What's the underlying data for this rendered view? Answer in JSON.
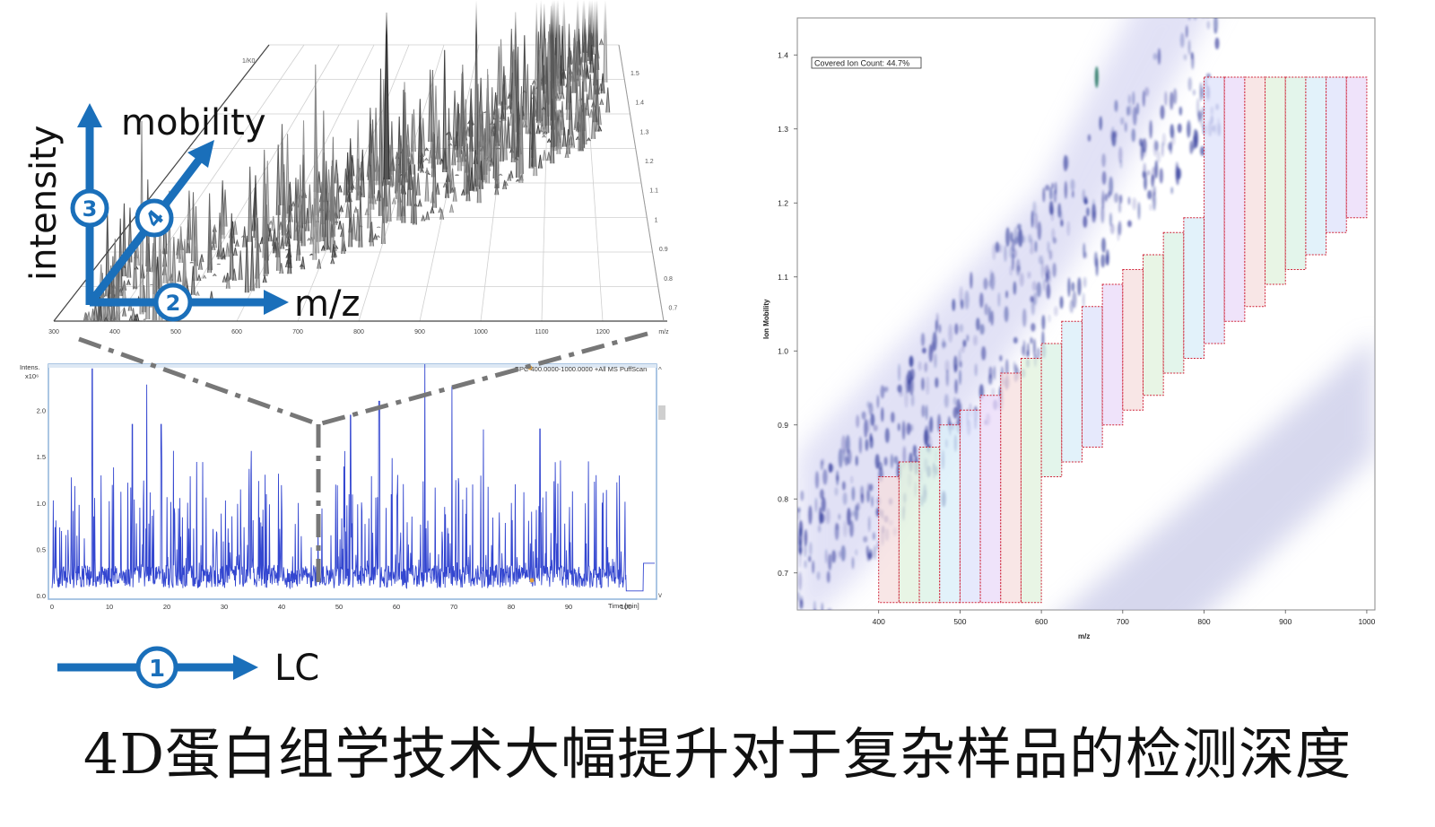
{
  "caption": "4D蛋白组学技术大幅提升对于复杂样品的检测深度",
  "axis_labels": {
    "intensity": "intensity",
    "mobility": "mobility",
    "mz": "m/z",
    "lc": "LC"
  },
  "badges": [
    "1",
    "2",
    "3",
    "4"
  ],
  "colors": {
    "accent_blue": "#1a6fba",
    "trace_blue": "#3346d0",
    "bin_border": "#d0253a"
  },
  "chart_data": [
    {
      "type": "line",
      "description_label": "3D surface",
      "x_ticks": [
        "300",
        "400",
        "500",
        "600",
        "700",
        "800",
        "900",
        "1000",
        "1100",
        "1200",
        "m/z"
      ],
      "z_ticks": [
        "1.5",
        "1.4",
        "1.3",
        "1.2",
        "1.1",
        "1",
        "0.9",
        "0.8",
        "0.7"
      ],
      "corner_label": "1/K0"
    },
    {
      "type": "line",
      "ylabel": "Intens.\nx10⁶",
      "ylabel_line1": "Intens.",
      "ylabel_line2": "x10⁶",
      "legend": "BPC 400.0000-1000.0000 +All MS PuffScan",
      "y_ticks": [
        "0.0",
        "0.5",
        "1.0",
        "1.5",
        "2.0"
      ],
      "x_ticks": [
        "0",
        "10",
        "20",
        "30",
        "40",
        "50",
        "60",
        "70",
        "80",
        "90",
        "100"
      ],
      "xlabel": "Time [min]",
      "xlim": [
        0,
        105
      ],
      "ylim": [
        0,
        2.5
      ]
    },
    {
      "type": "heatmap",
      "annotation": "Covered Ion Count: 44.7%",
      "xlabel": "m/z",
      "ylabel": "Ion Mobility",
      "x_ticks": [
        "400",
        "500",
        "600",
        "700",
        "800",
        "900",
        "1000"
      ],
      "y_ticks": [
        "0.7",
        "0.8",
        "0.9",
        "1.0",
        "1.1",
        "1.2",
        "1.3",
        "1.4"
      ],
      "xlim": [
        300,
        1010
      ],
      "ylim": [
        0.65,
        1.45
      ],
      "windows": [
        {
          "mz": [
            400,
            425
          ],
          "im": [
            0.66,
            0.83
          ]
        },
        {
          "mz": [
            425,
            450
          ],
          "im": [
            0.66,
            0.85
          ]
        },
        {
          "mz": [
            450,
            475
          ],
          "im": [
            0.66,
            0.87
          ]
        },
        {
          "mz": [
            475,
            500
          ],
          "im": [
            0.66,
            0.9
          ]
        },
        {
          "mz": [
            500,
            525
          ],
          "im": [
            0.66,
            0.92
          ]
        },
        {
          "mz": [
            525,
            550
          ],
          "im": [
            0.66,
            0.94
          ]
        },
        {
          "mz": [
            550,
            575
          ],
          "im": [
            0.66,
            0.97
          ]
        },
        {
          "mz": [
            575,
            600
          ],
          "im": [
            0.66,
            0.99
          ]
        },
        {
          "mz": [
            600,
            625
          ],
          "im": [
            0.83,
            1.01
          ]
        },
        {
          "mz": [
            625,
            650
          ],
          "im": [
            0.85,
            1.04
          ]
        },
        {
          "mz": [
            650,
            675
          ],
          "im": [
            0.87,
            1.06
          ]
        },
        {
          "mz": [
            675,
            700
          ],
          "im": [
            0.9,
            1.09
          ]
        },
        {
          "mz": [
            700,
            725
          ],
          "im": [
            0.92,
            1.11
          ]
        },
        {
          "mz": [
            725,
            750
          ],
          "im": [
            0.94,
            1.13
          ]
        },
        {
          "mz": [
            750,
            775
          ],
          "im": [
            0.97,
            1.16
          ]
        },
        {
          "mz": [
            775,
            800
          ],
          "im": [
            0.99,
            1.18
          ]
        },
        {
          "mz": [
            800,
            825
          ],
          "im": [
            1.01,
            1.37
          ]
        },
        {
          "mz": [
            825,
            850
          ],
          "im": [
            1.04,
            1.37
          ]
        },
        {
          "mz": [
            850,
            875
          ],
          "im": [
            1.06,
            1.37
          ]
        },
        {
          "mz": [
            875,
            900
          ],
          "im": [
            1.09,
            1.37
          ]
        },
        {
          "mz": [
            900,
            925
          ],
          "im": [
            1.11,
            1.37
          ]
        },
        {
          "mz": [
            925,
            950
          ],
          "im": [
            1.13,
            1.37
          ]
        },
        {
          "mz": [
            950,
            975
          ],
          "im": [
            1.16,
            1.37
          ]
        },
        {
          "mz": [
            975,
            1000
          ],
          "im": [
            1.18,
            1.37
          ]
        }
      ],
      "window_colors": [
        "#f6dede",
        "#e0f1dc",
        "#daf1e4",
        "#d8eef8",
        "#dde2fb",
        "#ead9f8"
      ]
    }
  ]
}
